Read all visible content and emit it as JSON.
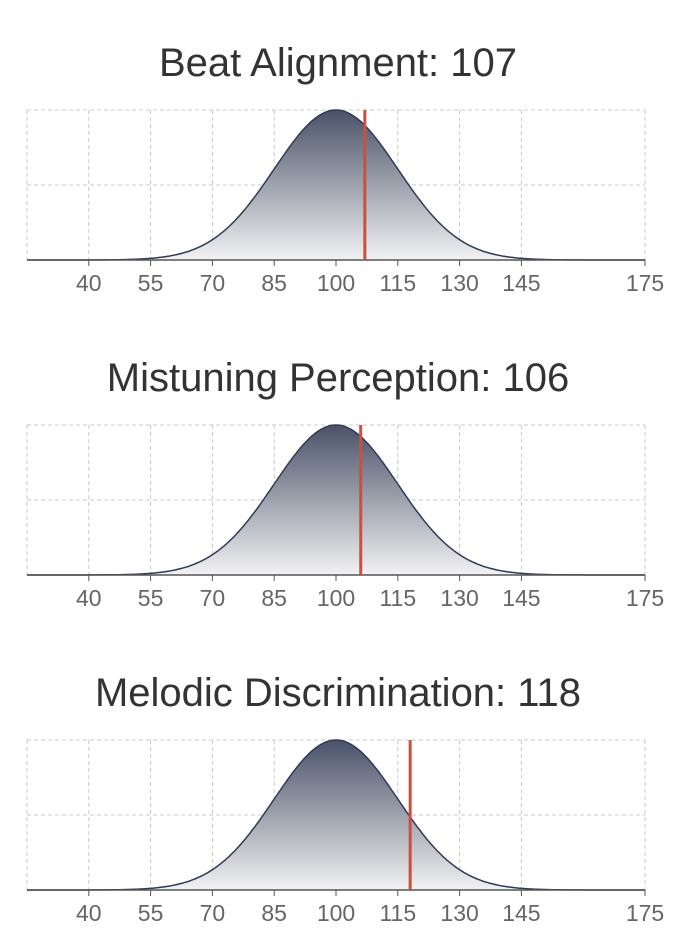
{
  "colors": {
    "curve": "#2f3a55",
    "fill_top": "#4a5268",
    "fill_bottom": "#f2f2f3",
    "score_line": "#c9503e",
    "axis": "#555555"
  },
  "chart_data": [
    {
      "type": "area",
      "title": "Beat Alignment: 107",
      "score": 107,
      "distribution": {
        "mean": 100,
        "sd": 15
      },
      "xlim": [
        25,
        175
      ],
      "xticks": [
        40,
        55,
        70,
        85,
        100,
        115,
        130,
        145,
        175
      ],
      "grid": true,
      "xlabel": "",
      "ylabel": ""
    },
    {
      "type": "area",
      "title": "Mistuning Perception: 106",
      "score": 106,
      "distribution": {
        "mean": 100,
        "sd": 15
      },
      "xlim": [
        25,
        175
      ],
      "xticks": [
        40,
        55,
        70,
        85,
        100,
        115,
        130,
        145,
        175
      ],
      "grid": true,
      "xlabel": "",
      "ylabel": ""
    },
    {
      "type": "area",
      "title": "Melodic Discrimination: 118",
      "score": 118,
      "distribution": {
        "mean": 100,
        "sd": 15
      },
      "xlim": [
        25,
        175
      ],
      "xticks": [
        40,
        55,
        70,
        85,
        100,
        115,
        130,
        145,
        175
      ],
      "grid": true,
      "xlabel": "",
      "ylabel": ""
    }
  ]
}
